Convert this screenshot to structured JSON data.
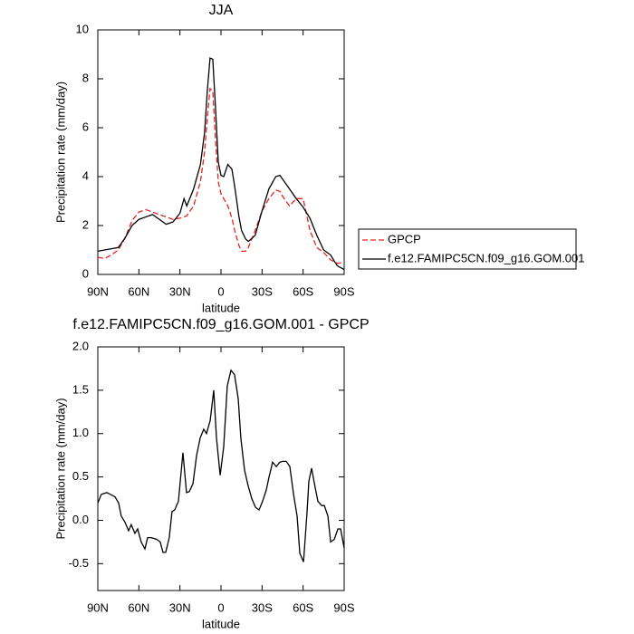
{
  "chart_data": [
    {
      "type": "line",
      "title": "JJA",
      "ylabel": "Precipitation rate (mm/day)",
      "xlabel": "latitude",
      "x": [
        90,
        85,
        80,
        75,
        70,
        65,
        60,
        55,
        50,
        45,
        40,
        35,
        30,
        27,
        25,
        20,
        15,
        12,
        10,
        8,
        6,
        4,
        2,
        0,
        -2,
        -5,
        -8,
        -10,
        -13,
        -15,
        -18,
        -20,
        -25,
        -30,
        -35,
        -40,
        -43,
        -45,
        -50,
        -55,
        -60,
        -65,
        -70,
        -75,
        -80,
        -85,
        -90
      ],
      "series": [
        {
          "name": "GPCP",
          "color": "#e8231f",
          "dash": true,
          "values": [
            0.7,
            0.65,
            0.8,
            1.0,
            1.5,
            2.2,
            2.55,
            2.65,
            2.55,
            2.45,
            2.35,
            2.25,
            2.3,
            2.35,
            2.4,
            2.8,
            3.8,
            5.0,
            6.4,
            7.6,
            7.5,
            5.5,
            3.8,
            3.3,
            3.1,
            2.8,
            2.3,
            1.8,
            1.2,
            0.95,
            0.95,
            1.1,
            1.8,
            2.6,
            3.1,
            3.45,
            3.4,
            3.2,
            2.8,
            3.1,
            3.1,
            1.8,
            1.1,
            0.9,
            0.6,
            0.45,
            0.5
          ]
        },
        {
          "name": "f.e12.FAMIPC5CN.f09_g16.GOM.001",
          "color": "#000000",
          "dash": false,
          "values": [
            0.95,
            1.0,
            1.05,
            1.1,
            1.5,
            2.0,
            2.25,
            2.35,
            2.45,
            2.25,
            2.05,
            2.15,
            2.5,
            3.1,
            2.8,
            3.5,
            4.5,
            5.8,
            7.5,
            8.85,
            8.8,
            6.8,
            4.6,
            4.05,
            4.0,
            4.5,
            4.3,
            3.6,
            2.4,
            1.8,
            1.45,
            1.35,
            1.6,
            2.6,
            3.5,
            4.0,
            4.05,
            3.9,
            3.5,
            3.1,
            2.75,
            2.3,
            1.6,
            1.0,
            0.8,
            0.35,
            0.2
          ]
        }
      ],
      "xlim": [
        90,
        -90
      ],
      "xticks": [
        {
          "value": 90,
          "label": "90N"
        },
        {
          "value": 60,
          "label": "60N"
        },
        {
          "value": 30,
          "label": "30N"
        },
        0,
        {
          "value": -30,
          "label": "30S"
        },
        {
          "value": -60,
          "label": "60S"
        },
        {
          "value": -90,
          "label": "90S"
        }
      ],
      "ylim": [
        0,
        10
      ],
      "yticks": [
        0,
        2,
        4,
        6,
        8,
        10
      ],
      "legend": "right"
    },
    {
      "type": "line",
      "title": "f.e12.FAMIPC5CN.f09_g16.GOM.001 - GPCP",
      "ylabel": "Precipitation rate (mm/day)",
      "xlabel": "latitude",
      "x": [
        90,
        87.4,
        83.4,
        77.4,
        74.8,
        72.9,
        70.2,
        67.5,
        65.6,
        62.9,
        60.9,
        58.3,
        55.6,
        53.6,
        51.0,
        47.0,
        44.4,
        42.4,
        40.4,
        37.8,
        35.8,
        33.8,
        31.1,
        27.8,
        25.2,
        23.2,
        20.5,
        17.8,
        15.2,
        12.6,
        10.6,
        7.9,
        5.3,
        3.3,
        0.6,
        -2.0,
        -4.6,
        -7.3,
        -9.9,
        -12.6,
        -14.5,
        -17.2,
        -19.8,
        -22.5,
        -25.2,
        -27.8,
        -30.4,
        -33.1,
        -35.1,
        -37.7,
        -40.4,
        -43.0,
        -45.0,
        -47.7,
        -50.3,
        -53.0,
        -55.6,
        -57.6,
        -60.3,
        -62.9,
        -64.2,
        -66.2,
        -68.8,
        -70.8,
        -73.5,
        -75.5,
        -78.1,
        -80.1,
        -82.8,
        -85.4,
        -87.4,
        -90
      ],
      "values": [
        0.2,
        0.3,
        0.32,
        0.27,
        0.2,
        0.05,
        -0.02,
        -0.12,
        -0.05,
        -0.15,
        -0.1,
        -0.25,
        -0.33,
        -0.2,
        -0.2,
        -0.22,
        -0.25,
        -0.37,
        -0.37,
        -0.2,
        0.1,
        0.12,
        0.22,
        0.78,
        0.32,
        0.33,
        0.42,
        0.75,
        0.95,
        1.05,
        1.0,
        1.15,
        1.5,
        0.95,
        0.52,
        0.85,
        1.55,
        1.73,
        1.68,
        1.4,
        0.95,
        0.58,
        0.4,
        0.25,
        0.15,
        0.12,
        0.22,
        0.35,
        0.5,
        0.67,
        0.62,
        0.67,
        0.68,
        0.68,
        0.62,
        0.3,
        0.05,
        -0.38,
        -0.48,
        0.1,
        0.45,
        0.6,
        0.38,
        0.22,
        0.17,
        0.17,
        0.05,
        -0.25,
        -0.22,
        -0.1,
        -0.1,
        -0.32
      ],
      "color": "#000000",
      "xlim": [
        90,
        -90
      ],
      "xticks": [
        {
          "value": 90,
          "label": "90N"
        },
        {
          "value": 60,
          "label": "60N"
        },
        {
          "value": 30,
          "label": "30N"
        },
        0,
        {
          "value": -30,
          "label": "30S"
        },
        {
          "value": -60,
          "label": "60S"
        },
        {
          "value": -90,
          "label": "90S"
        }
      ],
      "ylim": [
        -0.81,
        2.0
      ],
      "yticks": [
        -0.5,
        {
          "value": 0,
          "label": "0.0"
        },
        0.5,
        {
          "value": 1,
          "label": "1.0"
        },
        1.5,
        {
          "value": 2,
          "label": "2.0"
        }
      ]
    }
  ]
}
